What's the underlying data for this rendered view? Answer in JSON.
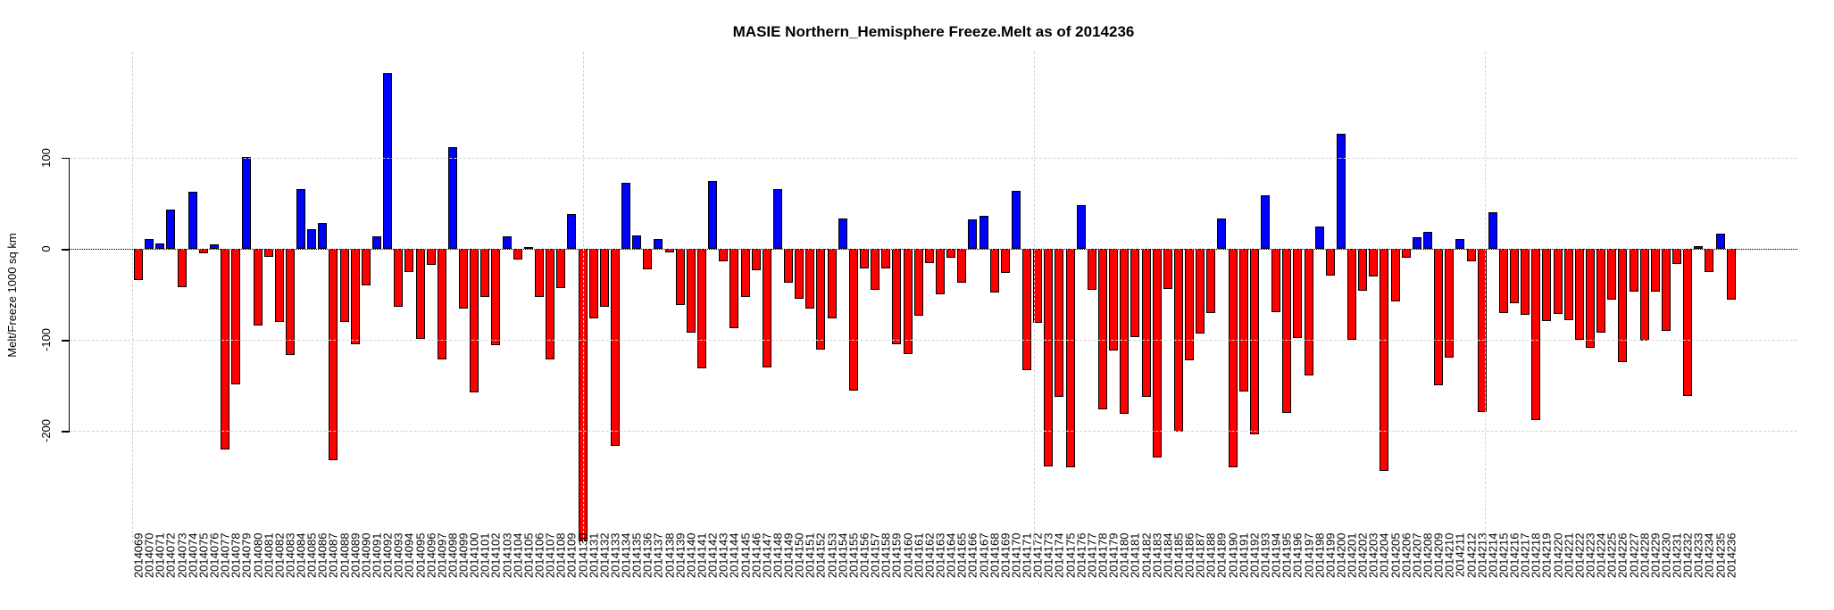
{
  "title": "MASIE Northern_Hemisphere Freeze.Melt as of 2014236",
  "y_axis": {
    "label": "Melt/Freeze 1000 sq km",
    "ticks": [
      "100",
      "0",
      "-100",
      "-200"
    ],
    "tick_values": [
      100,
      0,
      -100,
      -200
    ]
  },
  "chart_data": {
    "type": "bar",
    "title": "MASIE Northern_Hemisphere Freeze.Melt as of 2014236",
    "xlabel": "",
    "ylabel": "Melt/Freeze 1000 sq km",
    "ylim": [
      -322,
      219
    ],
    "grid": {
      "h_values": [
        100,
        0,
        -100,
        -200
      ],
      "v_fractions": [
        0.0362,
        0.2972,
        0.5581,
        0.8191
      ],
      "zero_line": true
    },
    "legend_position": "none",
    "colors": {
      "positive": "#0000ff",
      "negative": "#ff0000",
      "bar_border": "#000000",
      "grid": "#d3d3d3"
    },
    "categories": [
      "2014069",
      "2014070",
      "2014071",
      "2014072",
      "2014073",
      "2014074",
      "2014075",
      "2014076",
      "2014077",
      "2014078",
      "2014079",
      "2014080",
      "2014081",
      "2014082",
      "2014083",
      "2014084",
      "2014085",
      "2014086",
      "2014087",
      "2014088",
      "2014089",
      "2014090",
      "2014091",
      "2014092",
      "2014093",
      "2014094",
      "2014095",
      "2014096",
      "2014097",
      "2014098",
      "2014099",
      "2014100",
      "2014101",
      "2014102",
      "2014103",
      "2014104",
      "2014105",
      "2014106",
      "2014107",
      "2014108",
      "2014109",
      "2014130",
      "2014131",
      "2014132",
      "2014133",
      "2014134",
      "2014135",
      "2014136",
      "2014137",
      "2014138",
      "2014139",
      "2014140",
      "2014141",
      "2014142",
      "2014143",
      "2014144",
      "2014145",
      "2014146",
      "2014147",
      "2014148",
      "2014149",
      "2014150",
      "2014151",
      "2014152",
      "2014153",
      "2014154",
      "2014155",
      "2014156",
      "2014157",
      "2014158",
      "2014159",
      "2014160",
      "2014161",
      "2014162",
      "2014163",
      "2014164",
      "2014165",
      "2014166",
      "2014167",
      "2014168",
      "2014169",
      "2014170",
      "2014171",
      "2014172",
      "2014173",
      "2014174",
      "2014175",
      "2014176",
      "2014177",
      "2014178",
      "2014179",
      "2014180",
      "2014181",
      "2014182",
      "2014183",
      "2014184",
      "2014185",
      "2014186",
      "2014187",
      "2014188",
      "2014189",
      "2014190",
      "2014191",
      "2014192",
      "2014193",
      "2014194",
      "2014195",
      "2014196",
      "2014197",
      "2014198",
      "2014199",
      "2014200",
      "2014201",
      "2014202",
      "2014203",
      "2014204",
      "2014205",
      "2014206",
      "2014207",
      "2014208",
      "2014209",
      "2014210",
      "2014211",
      "2014212",
      "2014213",
      "2014214",
      "2014215",
      "2014216",
      "2014217",
      "2014218",
      "2014219",
      "2014220",
      "2014221",
      "2014222",
      "2014223",
      "2014224",
      "2014225",
      "2014226",
      "2014227",
      "2014228",
      "2014229",
      "2014230",
      "2014231",
      "2014232",
      "2014233",
      "2014234",
      "2014235",
      "2014236"
    ],
    "values": [
      -34,
      11,
      6,
      43,
      -42,
      63,
      -5,
      5,
      -220,
      -149,
      101,
      -84,
      -9,
      -80,
      -116,
      66,
      22,
      28,
      -232,
      -80,
      -105,
      -40,
      14,
      193,
      -64,
      -25,
      -99,
      -18,
      -121,
      112,
      -66,
      -158,
      -53,
      -106,
      14,
      -12,
      2,
      -53,
      -121,
      -43,
      38,
      -321,
      -76,
      -64,
      -216,
      72,
      15,
      -22,
      11,
      -4,
      -62,
      -92,
      -131,
      74,
      -14,
      -87,
      -53,
      -23,
      -130,
      66,
      -37,
      -55,
      -66,
      -111,
      -76,
      33,
      -156,
      -21,
      -45,
      -21,
      -105,
      -115,
      -73,
      -16,
      -50,
      -10,
      -37,
      32,
      36,
      -48,
      -26,
      64,
      -133,
      -81,
      -239,
      -162,
      -240,
      48,
      -45,
      -176,
      -112,
      -181,
      -97,
      -162,
      -229,
      -44,
      -201,
      -122,
      -93,
      -70,
      33,
      -240,
      -157,
      -204,
      59,
      -69,
      -180,
      -98,
      -139,
      25,
      -29,
      126,
      -100,
      -46,
      -30,
      -244,
      -58,
      -10,
      13,
      19,
      -150,
      -119,
      11,
      -14,
      -179,
      40,
      -70,
      -60,
      -72,
      -188,
      -79,
      -71,
      -78,
      -100,
      -109,
      -92,
      -56,
      -124,
      -47,
      -101,
      -47,
      -90,
      -17,
      -161,
      3,
      -25,
      17,
      -56
    ]
  }
}
